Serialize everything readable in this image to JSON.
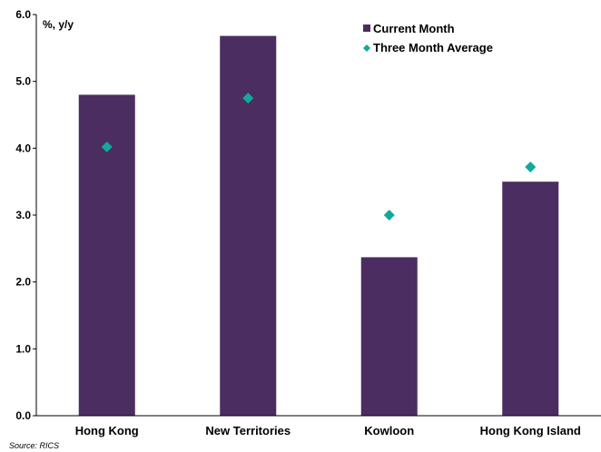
{
  "chart_data": {
    "type": "bar",
    "title": "",
    "unit_label": "%, y/y",
    "source": "Source: RICS",
    "categories": [
      "Hong Kong",
      "New Territories",
      "Kowloon",
      "Hong Kong Island"
    ],
    "series": [
      {
        "name": "Current Month",
        "kind": "bar",
        "color": "#4b2d62",
        "values": [
          4.8,
          5.68,
          2.37,
          3.5
        ]
      },
      {
        "name": "Three Month Average",
        "kind": "marker",
        "marker": "diamond",
        "color": "#12a89c",
        "values": [
          4.02,
          4.75,
          3.0,
          3.72
        ]
      }
    ],
    "ylim": [
      0,
      6
    ],
    "yticks": [
      "0.0",
      "1.0",
      "2.0",
      "3.0",
      "4.0",
      "5.0",
      "6.0"
    ],
    "grid": false,
    "legend_position": "top-right"
  }
}
